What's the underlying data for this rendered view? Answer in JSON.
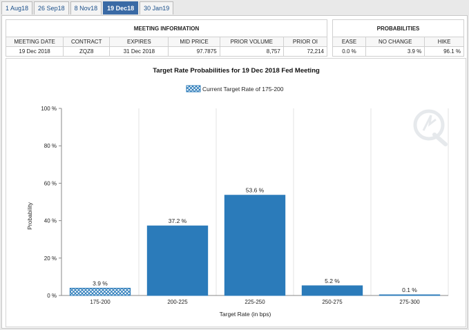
{
  "tabs": [
    {
      "label": "1 Aug18",
      "active": false
    },
    {
      "label": "26 Sep18",
      "active": false
    },
    {
      "label": "8 Nov18",
      "active": false
    },
    {
      "label": "19 Dec18",
      "active": true
    },
    {
      "label": "30 Jan19",
      "active": false
    }
  ],
  "meeting_info": {
    "title": "MEETING INFORMATION",
    "headers": [
      "MEETING DATE",
      "CONTRACT",
      "EXPIRES",
      "MID PRICE",
      "PRIOR VOLUME",
      "PRIOR OI"
    ],
    "values": [
      "19 Dec 2018",
      "ZQZ8",
      "31 Dec 2018",
      "97.7875",
      "8,757",
      "72,214"
    ]
  },
  "probabilities": {
    "title": "PROBABILITIES",
    "headers": [
      "EASE",
      "NO CHANGE",
      "HIKE"
    ],
    "values": [
      "0.0 %",
      "3.9 %",
      "96.1 %"
    ]
  },
  "colors": {
    "bar": "#2b7bba",
    "bar_current": "#2b7bba",
    "grid": "#e3e3e3",
    "axis": "#888888"
  },
  "chart_data": {
    "type": "bar",
    "title": "Target Rate Probabilities for 19 Dec 2018 Fed Meeting",
    "legend": {
      "label": "Current Target Rate of 175-200",
      "position": "top-center"
    },
    "xlabel": "Target Rate (in bps)",
    "ylabel": "Probability",
    "ylim": [
      0,
      100
    ],
    "yticks": [
      "0 %",
      "20 %",
      "40 %",
      "60 %",
      "80 %",
      "100 %"
    ],
    "ytick_values": [
      0,
      20,
      40,
      60,
      80,
      100
    ],
    "grid": "vertical",
    "categories": [
      "175-200",
      "200-225",
      "225-250",
      "250-275",
      "275-300"
    ],
    "values": [
      3.9,
      37.2,
      53.6,
      5.2,
      0.1
    ],
    "labels": [
      "3.9 %",
      "37.2 %",
      "53.6 %",
      "5.2 %",
      "0.1 %"
    ],
    "current_index": 0
  }
}
